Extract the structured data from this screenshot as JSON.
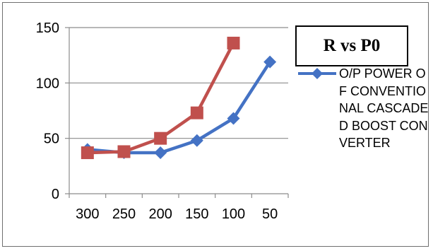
{
  "chart_data": {
    "type": "line",
    "title": "R vs P0",
    "categories": [
      "300",
      "250",
      "200",
      "150",
      "100",
      "50"
    ],
    "y_ticks": [
      "0",
      "50",
      "100",
      "150"
    ],
    "ylim": [
      0,
      150
    ],
    "grid": "horizontal",
    "legend_position": "right",
    "series": [
      {
        "name": "O/P POWER OF CONVENTIONAL CASCADED BOOST CONVERTER",
        "color": "#4472C4",
        "marker": "diamond",
        "values": [
          40,
          37,
          37,
          48,
          68,
          119
        ]
      },
      {
        "name": "",
        "color": "#C0504D",
        "marker": "square",
        "values": [
          37,
          38,
          50,
          73,
          136,
          null
        ]
      }
    ]
  }
}
